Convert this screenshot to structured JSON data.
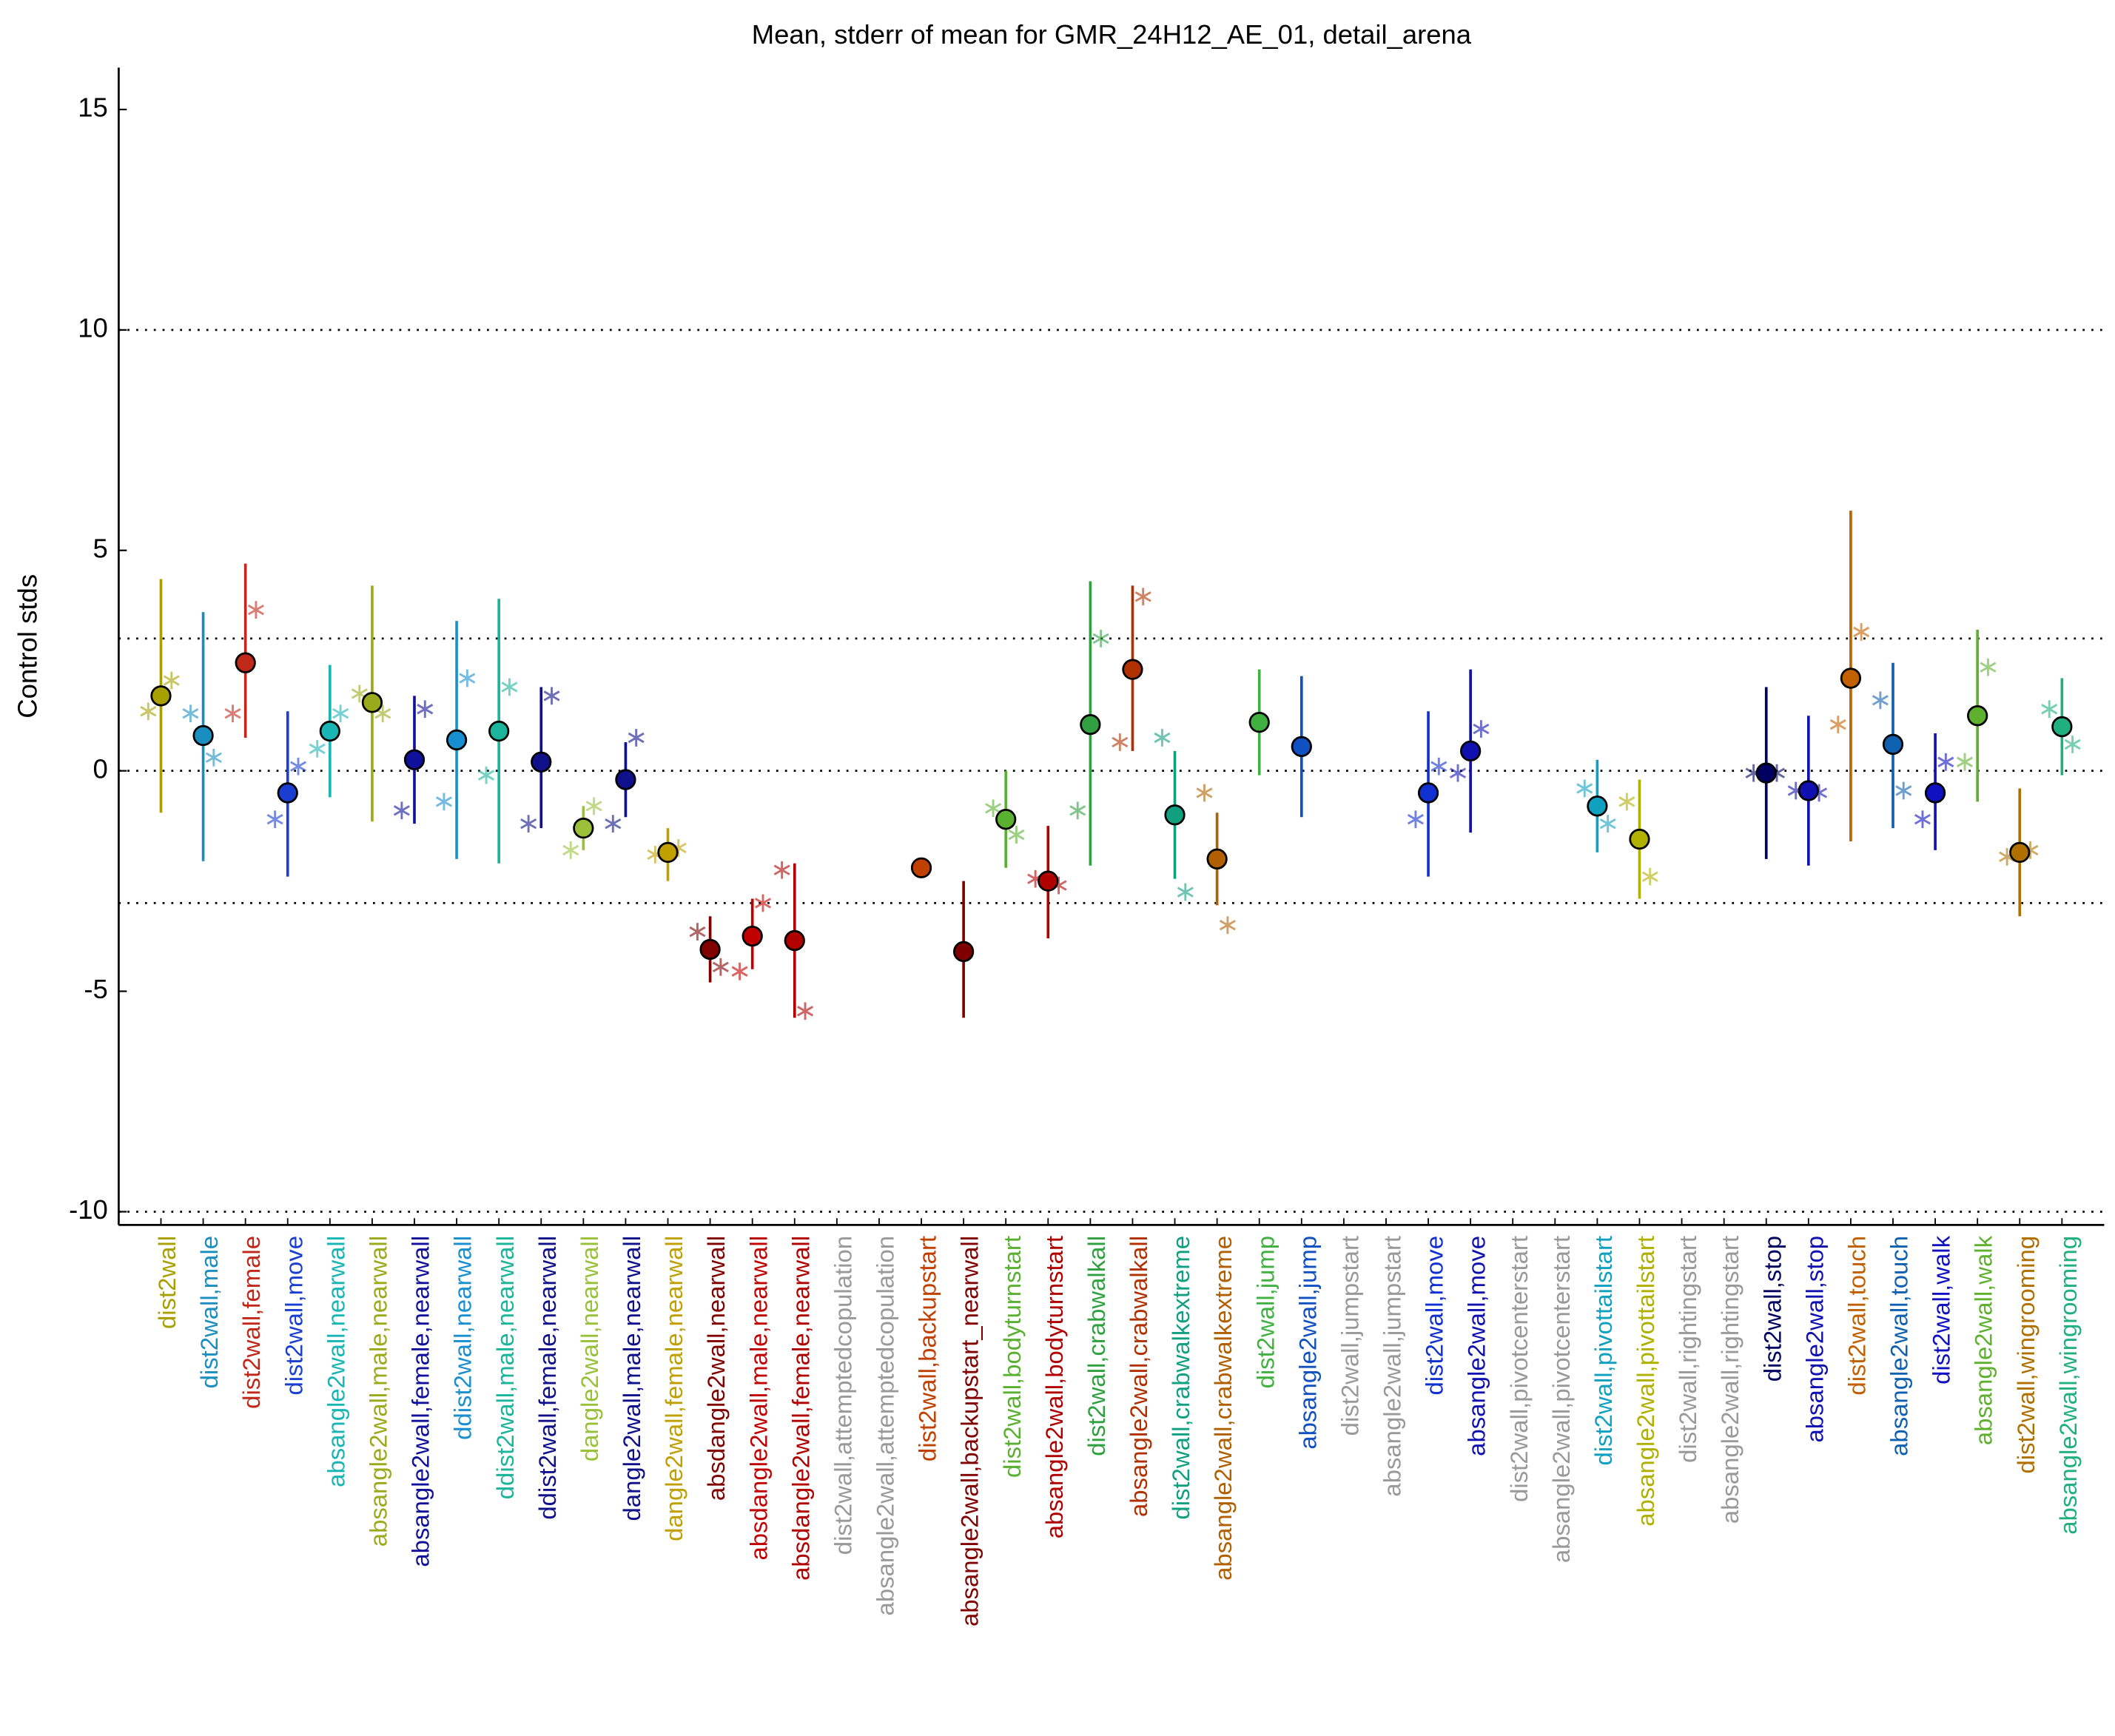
{
  "chart_data": {
    "type": "errorbar",
    "title": "Mean, stderr of mean for GMR_24H12_AE_01, detail_arena",
    "ylabel": "Control stds",
    "categories": [
      "dist2wall",
      "dist2wall,male",
      "dist2wall,female",
      "dist2wall,move",
      "absangle2wall,nearwall",
      "absangle2wall,male,nearwall",
      "absangle2wall,female,nearwall",
      "ddist2wall,nearwall",
      "ddist2wall,male,nearwall",
      "ddist2wall,female,nearwall",
      "dangle2wall,nearwall",
      "dangle2wall,male,nearwall",
      "dangle2wall,female,nearwall",
      "absdangle2wall,nearwall",
      "absdangle2wall,male,nearwall",
      "absdangle2wall,female,nearwall",
      "dist2wall,attemptedcopulation",
      "absangle2wall,attemptedcopulation",
      "dist2wall,backupstart",
      "absangle2wall,backupstart_nearwall",
      "dist2wall,bodyturnstart",
      "absangle2wall,bodyturnstart",
      "dist2wall,crabwalkall",
      "absangle2wall,crabwalkall",
      "dist2wall,crabwalkextreme",
      "absangle2wall,crabwalkextreme",
      "dist2wall,jump",
      "absangle2wall,jump",
      "dist2wall,jumpstart",
      "absangle2wall,jumpstart",
      "dist2wall,move",
      "absangle2wall,move",
      "dist2wall,pivotcenterstart",
      "absangle2wall,pivotcenterstart",
      "dist2wall,pivottailstart",
      "absangle2wall,pivottailstart",
      "dist2wall,rightingstart",
      "absangle2wall,rightingstart",
      "dist2wall,stop",
      "absangle2wall,stop",
      "dist2wall,touch",
      "absangle2wall,touch",
      "dist2wall,walk",
      "absangle2wall,walk",
      "dist2wall,wingrooming",
      "absangle2wall,wingrooming"
    ],
    "colors": [
      "#a8a000",
      "#1a8fbf",
      "#c0281a",
      "#1a3fd0",
      "#19b5b5",
      "#9aaa1a",
      "#10109a",
      "#1a8fcf",
      "#1ab59a",
      "#10108a",
      "#9ac03a",
      "#10108a",
      "#c0a000",
      "#800000",
      "#c00000",
      "#b00000",
      "#999999",
      "#999999",
      "#c04000",
      "#800000",
      "#5ab030",
      "#b00000",
      "#30a040",
      "#b03000",
      "#10a080",
      "#b06000",
      "#40b040",
      "#1050c0",
      "#999999",
      "#999999",
      "#1030d0",
      "#1010b0",
      "#999999",
      "#999999",
      "#10a0c0",
      "#b0b000",
      "#999999",
      "#999999",
      "#000060",
      "#1010b0",
      "#c06000",
      "#1060b0",
      "#1010c0",
      "#60b030",
      "#b07000",
      "#20b080"
    ],
    "means": [
      1.7,
      0.8,
      2.45,
      -0.5,
      0.9,
      1.55,
      0.25,
      0.7,
      0.9,
      0.2,
      -1.3,
      -0.2,
      -1.85,
      -4.05,
      -3.75,
      -3.85,
      null,
      null,
      -2.2,
      -4.1,
      -1.1,
      -2.5,
      1.05,
      2.3,
      -1.0,
      -2.0,
      1.1,
      0.55,
      null,
      null,
      -0.5,
      0.45,
      null,
      null,
      -0.8,
      -1.55,
      null,
      null,
      -0.05,
      -0.45,
      2.1,
      0.6,
      -0.5,
      1.25,
      -1.85,
      1.0
    ],
    "lower": [
      -0.95,
      -2.05,
      0.75,
      -2.4,
      -0.6,
      -1.15,
      -1.2,
      -2.0,
      -2.1,
      -1.3,
      -1.8,
      -1.05,
      -2.5,
      -4.8,
      -4.5,
      -5.6,
      null,
      null,
      -2.4,
      -5.6,
      -2.2,
      -3.8,
      -2.15,
      0.45,
      -2.45,
      -3.05,
      -0.1,
      -1.05,
      null,
      null,
      -2.4,
      -1.4,
      null,
      null,
      -1.85,
      -2.9,
      null,
      null,
      -2.0,
      -2.15,
      -1.6,
      -1.3,
      -1.8,
      -0.7,
      -3.3,
      -0.1
    ],
    "upper": [
      4.35,
      3.6,
      4.7,
      1.35,
      2.4,
      4.2,
      1.7,
      3.4,
      3.9,
      1.9,
      -0.8,
      0.65,
      -1.3,
      -3.3,
      -2.9,
      -2.1,
      null,
      null,
      -2.0,
      -2.5,
      0.0,
      -1.25,
      4.3,
      4.2,
      0.45,
      -0.95,
      2.3,
      2.15,
      null,
      null,
      1.35,
      2.3,
      null,
      null,
      0.25,
      -0.2,
      null,
      null,
      1.9,
      1.25,
      5.9,
      2.45,
      0.85,
      3.2,
      -0.4,
      2.1
    ],
    "stars_left": [
      1.35,
      1.3,
      1.3,
      -1.1,
      0.5,
      1.75,
      -0.9,
      -0.7,
      -0.1,
      -1.2,
      -1.8,
      -1.2,
      -1.9,
      -3.65,
      -4.55,
      -2.25,
      null,
      null,
      null,
      null,
      -0.85,
      -2.45,
      -0.9,
      0.65,
      0.75,
      -0.5,
      null,
      null,
      null,
      null,
      -1.1,
      -0.05,
      null,
      null,
      -0.4,
      -0.7,
      null,
      null,
      -0.05,
      -0.45,
      1.05,
      1.6,
      -1.1,
      0.2,
      -1.95,
      1.4
    ],
    "stars_right": [
      2.05,
      0.3,
      3.65,
      0.1,
      1.3,
      1.3,
      1.4,
      2.1,
      1.9,
      1.7,
      -0.8,
      0.75,
      -1.75,
      -4.45,
      -3.0,
      -5.45,
      null,
      null,
      null,
      null,
      -1.45,
      -2.6,
      3.0,
      3.95,
      -2.75,
      -3.5,
      null,
      null,
      null,
      null,
      0.1,
      0.95,
      null,
      null,
      -1.2,
      -2.4,
      null,
      null,
      -0.05,
      -0.5,
      3.15,
      -0.45,
      0.2,
      2.35,
      -1.8,
      0.6
    ],
    "ylim": [
      -10.3,
      15.95
    ],
    "yticks": [
      -10,
      -5,
      0,
      5,
      10,
      15
    ],
    "hlines": [
      -10,
      -3,
      0,
      3,
      10
    ]
  }
}
